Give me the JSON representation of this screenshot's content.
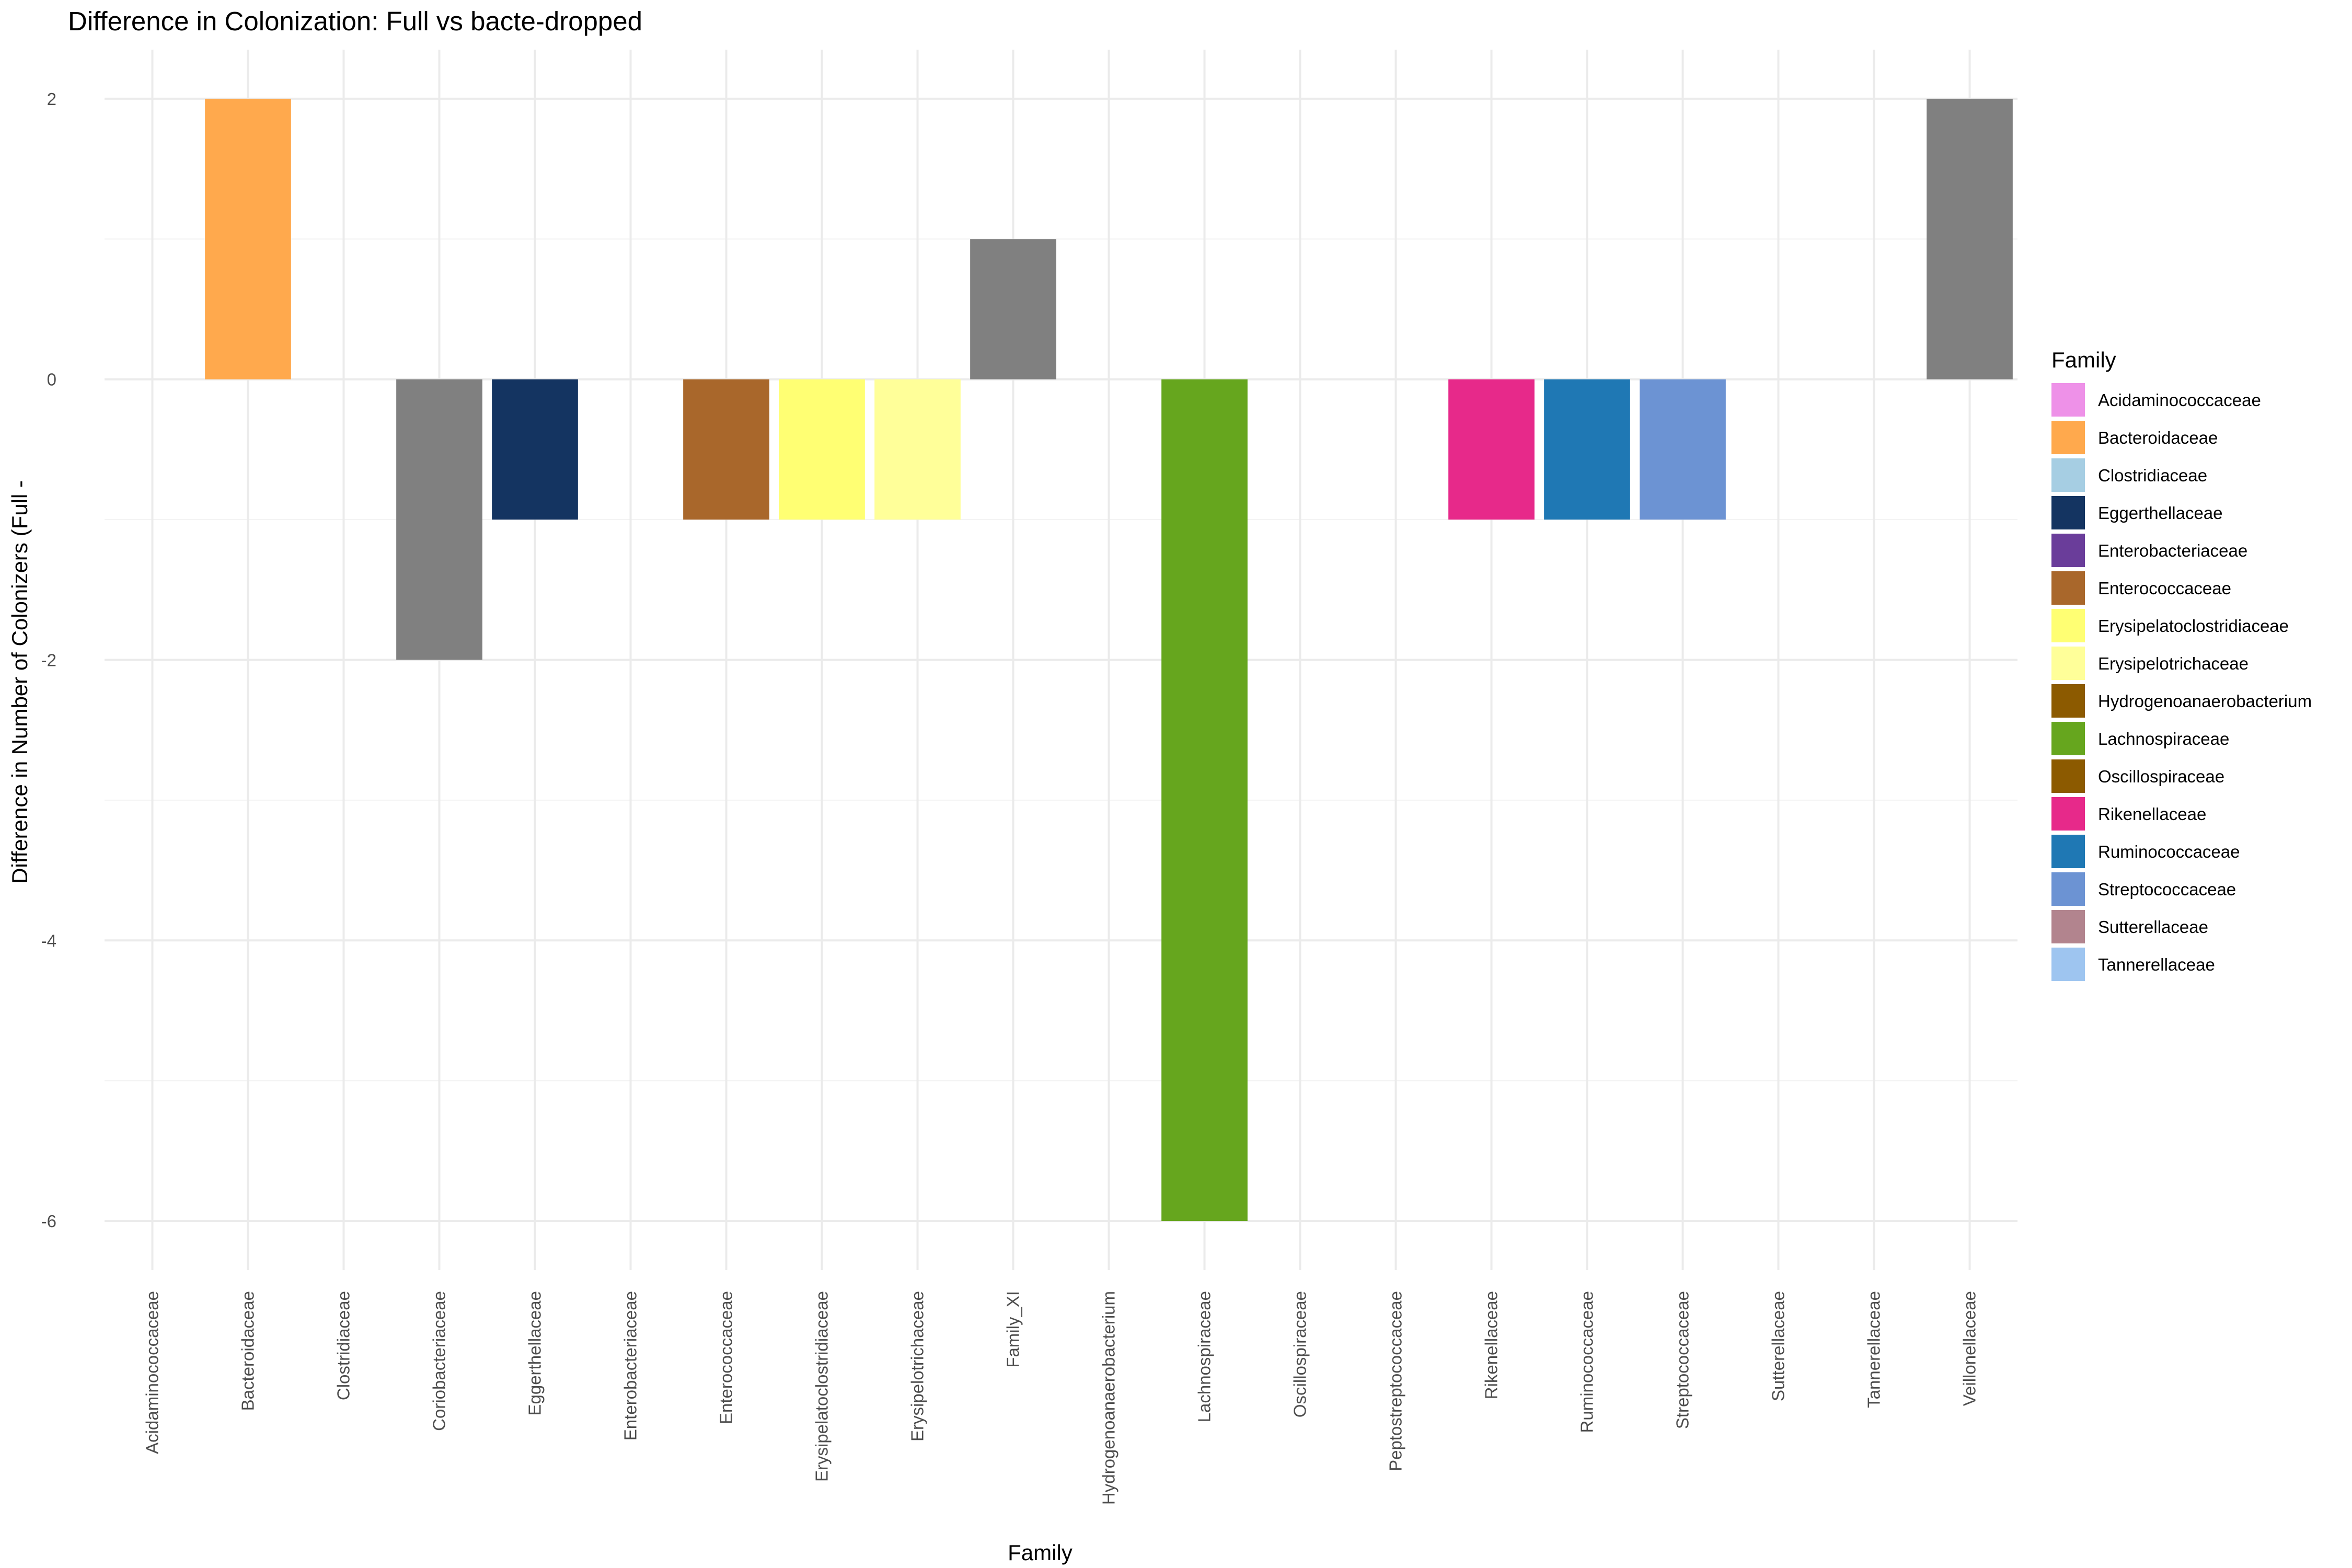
{
  "chart_data": {
    "type": "bar",
    "title": "Difference in Colonization: Full vs bacte-dropped",
    "xlabel": "Family",
    "ylabel": "Difference in Number of Colonizers (Full -",
    "ylim": [
      -6.35,
      2.35
    ],
    "y_ticks": [
      -6,
      -4,
      -2,
      0,
      2
    ],
    "grid": true,
    "legend_placement": "right",
    "legend_title": "Family",
    "categories": [
      "Acidaminococcaceae",
      "Bacteroidaceae",
      "Clostridiaceae",
      "Coriobacteriaceae",
      "Eggerthellaceae",
      "Enterobacteriaceae",
      "Enterococcaceae",
      "Erysipelatoclostridiaceae",
      "Erysipelotrichaceae",
      "Family_XI",
      "Hydrogenoanaerobacterium",
      "Lachnospiraceae",
      "Oscillospiraceae",
      "Peptostreptococcaceae",
      "Rikenellaceae",
      "Ruminococcaceae",
      "Streptococcaceae",
      "Sutterellaceae",
      "Tannerellaceae",
      "Veillonellaceae"
    ],
    "values": [
      0,
      2,
      0,
      -2,
      -1,
      0,
      -1,
      -1,
      -1,
      1,
      0,
      -6,
      0,
      0,
      -1,
      -1,
      -1,
      0,
      0,
      2
    ],
    "bar_colors": [
      "#EE91E8",
      "#FFA94D",
      "#A6CEE3",
      "#808080",
      "#143461",
      "#6A3D9A",
      "#A9672B",
      "#FFFF73",
      "#FFFF99",
      "#808080",
      "#8C5A00",
      "#66A61E",
      "#8C5A00",
      "#808080",
      "#E7298A",
      "#1F78B4",
      "#6C93D3",
      "#B2848E",
      "#9EC5F0",
      "#808080"
    ],
    "legend": [
      {
        "label": "Acidaminococcaceae",
        "color": "#EE91E8"
      },
      {
        "label": "Bacteroidaceae",
        "color": "#FFA94D"
      },
      {
        "label": "Clostridiaceae",
        "color": "#A6CEE3"
      },
      {
        "label": "Eggerthellaceae",
        "color": "#143461"
      },
      {
        "label": "Enterobacteriaceae",
        "color": "#6A3D9A"
      },
      {
        "label": "Enterococcaceae",
        "color": "#A9672B"
      },
      {
        "label": "Erysipelatoclostridiaceae",
        "color": "#FFFF73"
      },
      {
        "label": "Erysipelotrichaceae",
        "color": "#FFFF99"
      },
      {
        "label": "Hydrogenoanaerobacterium",
        "color": "#8C5A00"
      },
      {
        "label": "Lachnospiraceae",
        "color": "#66A61E"
      },
      {
        "label": "Oscillospiraceae",
        "color": "#8C5A00"
      },
      {
        "label": "Rikenellaceae",
        "color": "#E7298A"
      },
      {
        "label": "Ruminococcaceae",
        "color": "#1F78B4"
      },
      {
        "label": "Streptococcaceae",
        "color": "#6C93D3"
      },
      {
        "label": "Sutterellaceae",
        "color": "#B2848E"
      },
      {
        "label": "Tannerellaceae",
        "color": "#9EC5F0"
      }
    ]
  }
}
